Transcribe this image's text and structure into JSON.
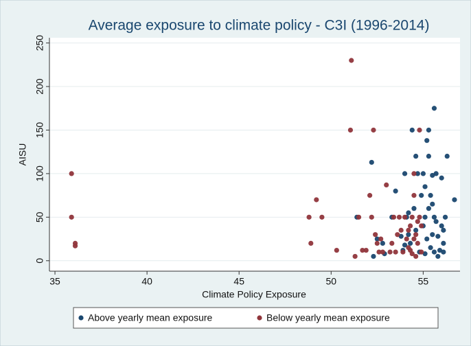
{
  "chart_data": {
    "type": "scatter",
    "title": "Average exposure to climate policy - C3I (1996-2014)",
    "x_label": "Climate Policy Exposure",
    "y_label": "AISU",
    "xlim": [
      34.7,
      57
    ],
    "ylim": [
      -12,
      256
    ],
    "xticks": [
      35,
      40,
      45,
      50,
      55
    ],
    "yticks": [
      0,
      50,
      100,
      150,
      200,
      250
    ],
    "grid": true,
    "legend_position": "bottom",
    "series": [
      {
        "name": "Above yearly mean exposure",
        "color": "#1a476f",
        "x": [
          51.4,
          52.2,
          52.3,
          52.5,
          52.8,
          53.3,
          53.5,
          53.9,
          54.0,
          54.1,
          54.2,
          54.3,
          54.4,
          54.5,
          54.6,
          54.7,
          54.8,
          54.9,
          55.0,
          55.1,
          55.2,
          55.3,
          55.3,
          55.4,
          55.5,
          55.5,
          55.6,
          55.6,
          55.7,
          55.7,
          55.8,
          55.9,
          56.0,
          56.1,
          56.1,
          56.2,
          56.3,
          56.7,
          55.0,
          55.2,
          55.4,
          55.1,
          54.2,
          54.0,
          55.5,
          55.3,
          56.0,
          55.8,
          54.6,
          53.8,
          55.1,
          56.1,
          55.6,
          52.9
        ],
        "values": [
          50,
          113,
          5,
          25,
          20,
          50,
          80,
          12,
          100,
          50,
          30,
          20,
          150,
          60,
          35,
          100,
          10,
          75,
          100,
          50,
          138,
          150,
          120,
          75,
          98,
          65,
          175,
          50,
          45,
          100,
          28,
          12,
          95,
          20,
          10,
          50,
          120,
          70,
          40,
          25,
          15,
          8,
          55,
          18,
          30,
          60,
          40,
          5,
          120,
          28,
          85,
          35,
          10,
          8
        ]
      },
      {
        "name": "Below yearly mean exposure",
        "color": "#90353b",
        "x": [
          35.9,
          35.9,
          36.1,
          36.1,
          48.8,
          48.9,
          49.2,
          49.5,
          50.3,
          51.1,
          51.05,
          51.3,
          51.5,
          51.7,
          51.9,
          52.1,
          52.2,
          52.3,
          52.4,
          52.5,
          52.6,
          52.8,
          53.0,
          53.2,
          53.4,
          53.5,
          53.6,
          53.7,
          53.8,
          53.9,
          54.0,
          54.1,
          54.2,
          54.3,
          54.4,
          54.5,
          54.5,
          54.6,
          54.7,
          54.8,
          54.8,
          54.9,
          54.9,
          54.6,
          54.4,
          54.2,
          54.7,
          54.5,
          54.3,
          53.3,
          52.7
        ],
        "values": [
          100,
          50,
          20,
          17,
          50,
          20,
          70,
          50,
          12,
          230,
          150,
          5,
          50,
          12,
          12,
          75,
          50,
          150,
          30,
          20,
          10,
          10,
          87,
          10,
          50,
          10,
          30,
          50,
          35,
          10,
          50,
          25,
          15,
          40,
          50,
          100,
          75,
          30,
          20,
          150,
          50,
          40,
          10,
          5,
          8,
          35,
          45,
          25,
          12,
          20,
          25
        ]
      }
    ]
  }
}
